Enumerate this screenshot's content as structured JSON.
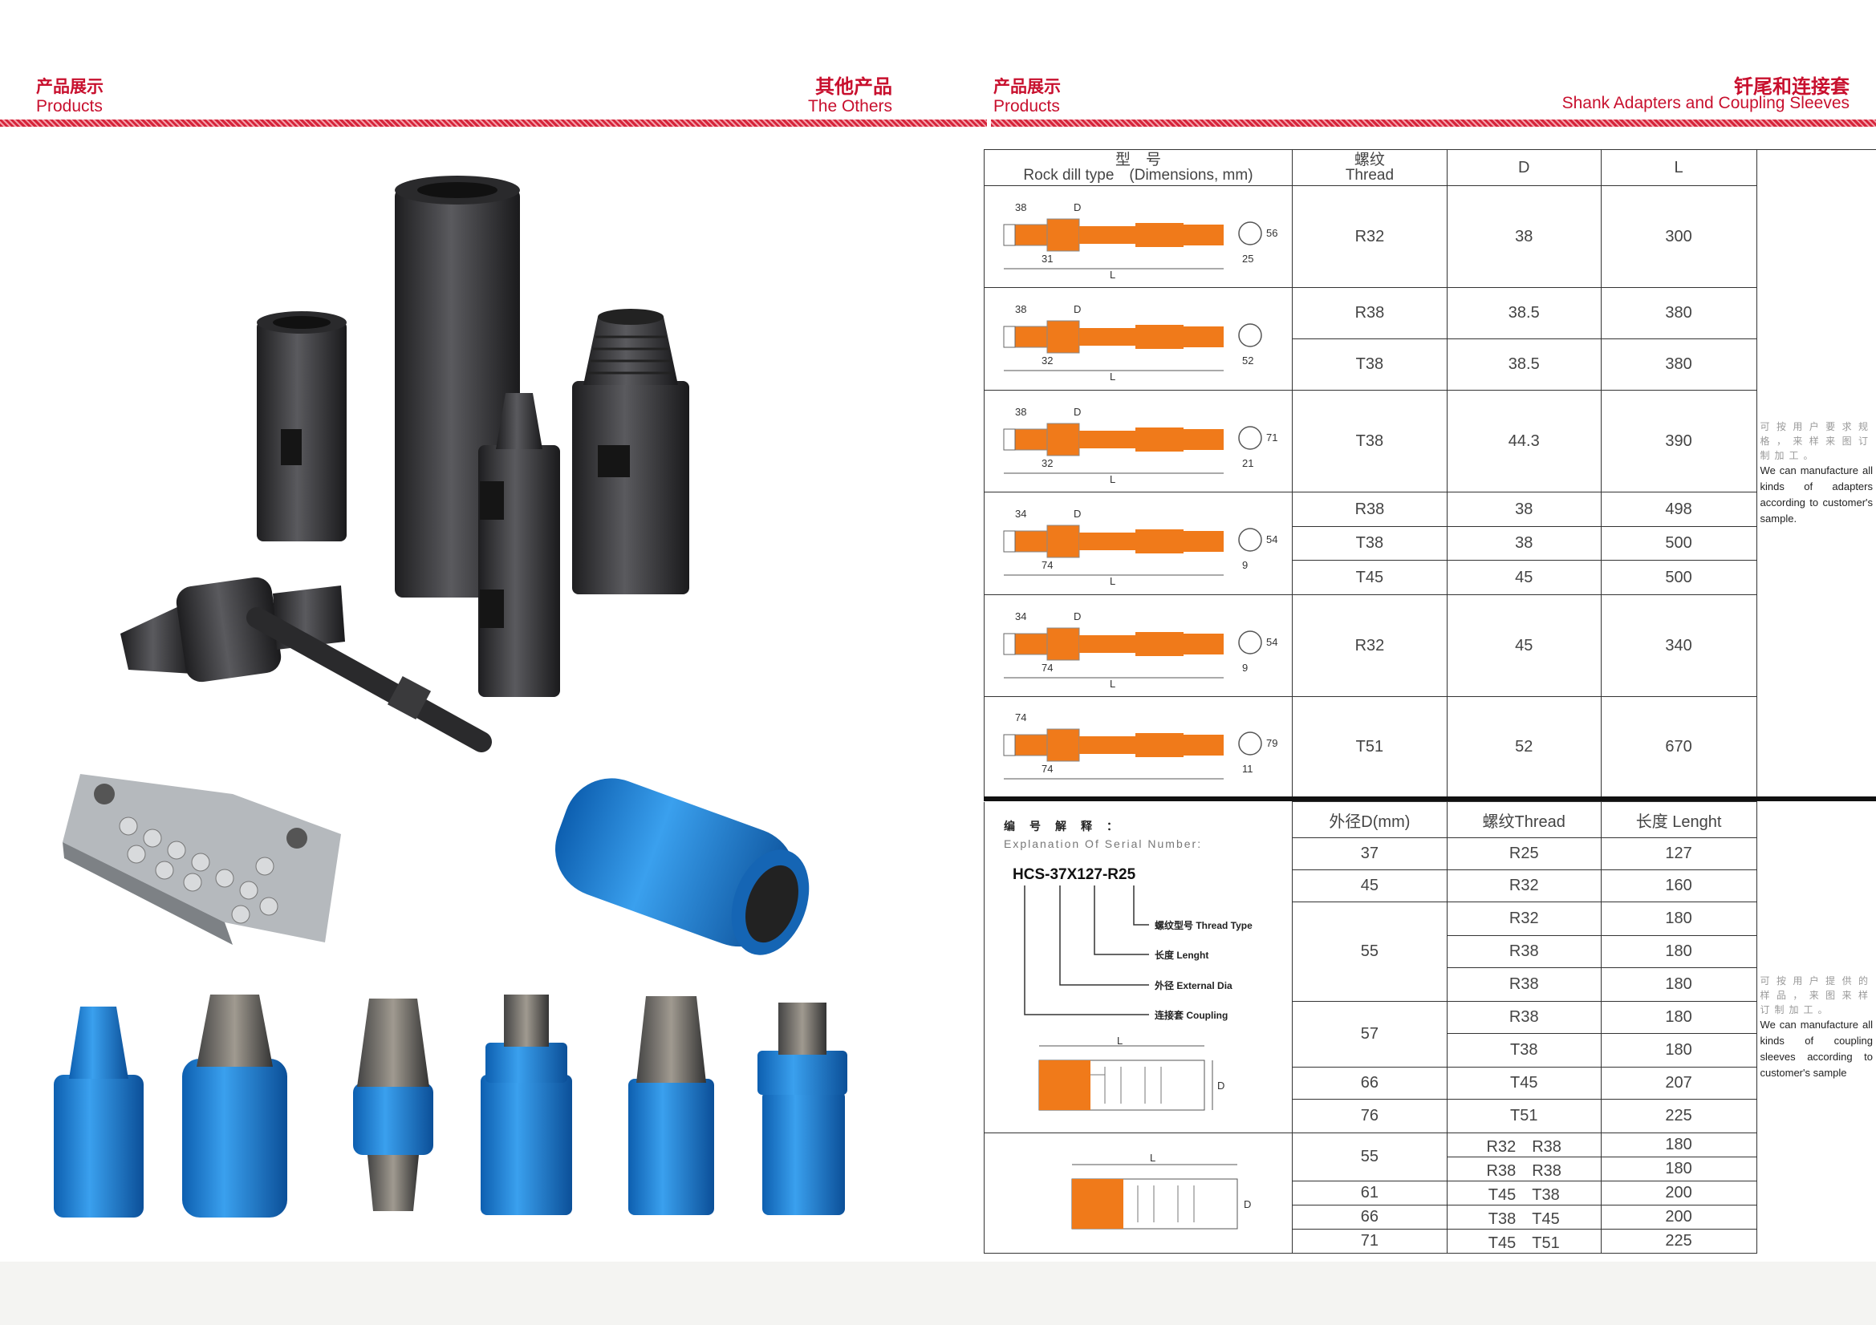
{
  "left_page": {
    "header_cn": "产品展示",
    "header_en": "Products",
    "title_cn": "其他产品",
    "title_en": "The Others"
  },
  "right_page": {
    "header_cn": "产品展示",
    "header_en": "Products",
    "title_cn": "钎尾和连接套",
    "title_en": "Shank Adapters and Coupling Sleeves"
  },
  "colors": {
    "accent_red": "#c8102e",
    "shank_orange": "#f07a1a",
    "coupling_blue": "#1f7fd0",
    "steel_dark": "#3a3a3c"
  },
  "shank_table": {
    "header": {
      "type_cn": "型　号",
      "type_en": "Rock dill type　(Dimensions, mm)",
      "thread_cn": "螺纹",
      "thread_en": "Thread",
      "d": "D",
      "l": "L"
    },
    "groups": [
      {
        "drawing": {
          "top_left": "38",
          "top_d": "D",
          "profile_side": "56",
          "bottom_left": "31",
          "profile_bottom": "25",
          "length": "L"
        },
        "rows": [
          {
            "thread": "R32",
            "d": "38",
            "l": "300"
          }
        ]
      },
      {
        "drawing": {
          "top_left": "38",
          "top_d": "D",
          "profile_side": "",
          "bottom_left": "32",
          "profile_bottom": "52",
          "length": "L"
        },
        "rows": [
          {
            "thread": "R38",
            "d": "38.5",
            "l": "380"
          },
          {
            "thread": "T38",
            "d": "38.5",
            "l": "380"
          }
        ]
      },
      {
        "drawing": {
          "top_left": "38",
          "top_d": "D",
          "profile_side": "71",
          "bottom_left": "32",
          "profile_bottom": "21",
          "length": "L"
        },
        "rows": [
          {
            "thread": "T38",
            "d": "44.3",
            "l": "390"
          }
        ]
      },
      {
        "drawing": {
          "top_left": "34",
          "top_d": "D",
          "profile_side": "54",
          "bottom_left": "74",
          "profile_bottom": "9",
          "length": "L"
        },
        "rows": [
          {
            "thread": "R38",
            "d": "38",
            "l": "498"
          },
          {
            "thread": "T38",
            "d": "38",
            "l": "500"
          },
          {
            "thread": "T45",
            "d": "45",
            "l": "500"
          }
        ]
      },
      {
        "drawing": {
          "top_left": "34",
          "top_d": "D",
          "profile_side": "54",
          "bottom_left": "74",
          "profile_bottom": "9",
          "length": "L"
        },
        "rows": [
          {
            "thread": "R32",
            "d": "45",
            "l": "340"
          }
        ]
      },
      {
        "drawing": {
          "top_left": "74",
          "top_d": "",
          "profile_side": "79",
          "bottom_left": "74",
          "profile_bottom": "11",
          "length": ""
        },
        "rows": [
          {
            "thread": "T51",
            "d": "52",
            "l": "670"
          }
        ]
      }
    ],
    "note_cn": "可按用户要求规格，来样来图订制加工。",
    "note_en": "We can manufacture all kinds of adapters according to customer's sample."
  },
  "coupling_table": {
    "header": {
      "d": "外径D(mm)",
      "thread": "螺纹Thread",
      "length": "长度 Lenght"
    },
    "explanation": {
      "title_cn": "编　号　解　释　：",
      "title_en": "Explanation Of Serial Number:",
      "serial": "HCS-37X127-R25",
      "thread_type": "螺纹型号 Thread Type",
      "length": "长度 Lenght",
      "external_dia": "外径 External Dia",
      "coupling": "连接套 Coupling",
      "dim_l": "L",
      "dim_d": "D"
    },
    "groups_a": [
      {
        "d": "37",
        "rows": [
          {
            "thread": "R25",
            "length": "127"
          }
        ]
      },
      {
        "d": "45",
        "rows": [
          {
            "thread": "R32",
            "length": "160"
          }
        ]
      },
      {
        "d": "55",
        "rows": [
          {
            "thread": "R32",
            "length": "180"
          },
          {
            "thread": "R38",
            "length": "180"
          },
          {
            "thread": "R38",
            "length": "180"
          }
        ]
      },
      {
        "d": "57",
        "rows": [
          {
            "thread": "R38",
            "length": "180"
          },
          {
            "thread": "T38",
            "length": "180"
          }
        ]
      },
      {
        "d": "66",
        "rows": [
          {
            "thread": "T45",
            "length": "207"
          }
        ]
      },
      {
        "d": "76",
        "rows": [
          {
            "thread": "T51",
            "length": "225"
          }
        ]
      }
    ],
    "drawing_b": {
      "dim_l": "L",
      "dim_d": "D"
    },
    "groups_b": [
      {
        "d": "55",
        "rows": [
          {
            "thread": "R32　R38",
            "length": "180"
          },
          {
            "thread": "R38　R38",
            "length": "180"
          }
        ]
      },
      {
        "d": "61",
        "rows": [
          {
            "thread": "T45　T38",
            "length": "200"
          }
        ]
      },
      {
        "d": "66",
        "rows": [
          {
            "thread": "T38　T45",
            "length": "200"
          }
        ]
      },
      {
        "d": "71",
        "rows": [
          {
            "thread": "T45　T51",
            "length": "225"
          }
        ]
      }
    ],
    "note_cn": "可按用户提供的样品，来图来样订制加工。",
    "note_en": "We can manufacture all kinds of coupling sleeves according to customer's sample"
  }
}
